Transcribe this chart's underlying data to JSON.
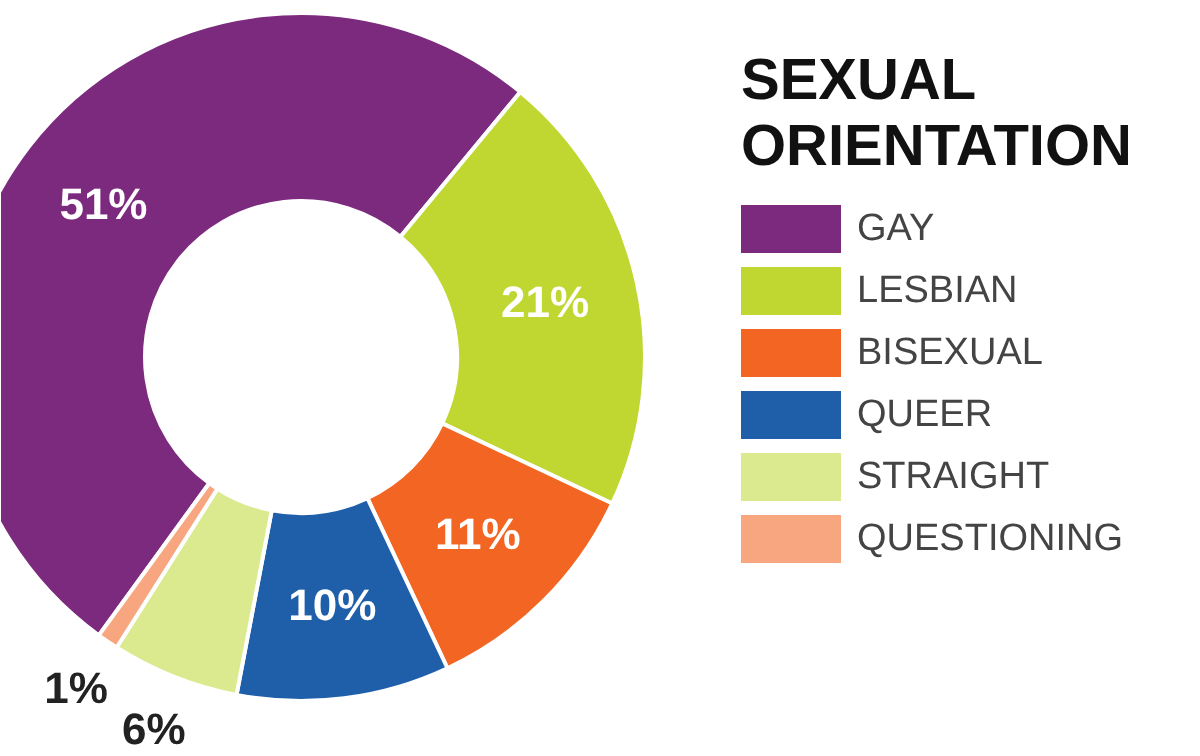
{
  "chart_data": {
    "type": "donut",
    "legend_title": "SEXUAL ORIENTATION",
    "legend": "right",
    "categories": [
      "GAY",
      "LESBIAN",
      "BISEXUAL",
      "QUEER",
      "STRAIGHT",
      "QUESTIONING"
    ],
    "values": [
      51,
      21,
      11,
      10,
      6,
      1
    ],
    "colors": [
      "#7b2a7e",
      "#bfd730",
      "#f26522",
      "#1f5faa",
      "#dbe98f",
      "#f8a67f"
    ],
    "value_labels": [
      "51%",
      "21%",
      "11%",
      "10%",
      "6%",
      "1%"
    ]
  }
}
